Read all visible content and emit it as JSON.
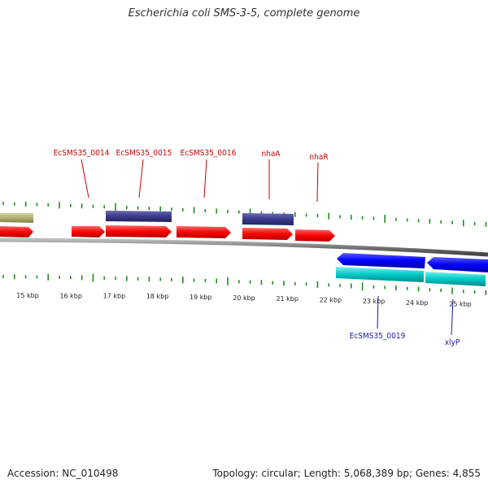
{
  "title": "Escherichia coli SMS-3-5, complete genome",
  "footer": {
    "accession": "Accession: NC_010498",
    "summary": "Topology: circular; Length: 5,068,389 bp; Genes: 4,855"
  },
  "colors": {
    "forward_cds": "#ff0000",
    "reverse_cds": "#0000ff",
    "forward_gene_purple": "#3a3a8c",
    "forward_gene_olive": "#b0b070",
    "reverse_gene_cyan": "#00c8c8",
    "top_label": "#cc0000",
    "bottom_label": "#1a1aa6",
    "gc_ticks": "#228b22",
    "backbone": "#888888"
  },
  "scale_ticks": [
    "15 kbp",
    "16 kbp",
    "17 kbp",
    "18 kbp",
    "19 kbp",
    "20 kbp",
    "21 kbp",
    "22 kbp",
    "23 kbp",
    "24 kbp",
    "25 kbp"
  ],
  "forward_labels": [
    "EcSMS35_0014",
    "EcSMS35_0015",
    "EcSMS35_0016",
    "nhaA",
    "nhaR"
  ],
  "reverse_labels": [
    "EcSMS35_0019",
    "xlyP"
  ]
}
